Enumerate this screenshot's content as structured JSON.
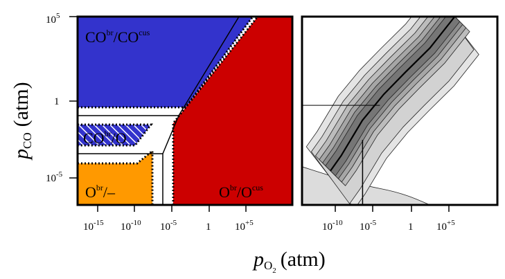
{
  "chart_data": [
    {
      "type": "phase-diagram",
      "panel": "left",
      "x_ticks": [
        {
          "base": "10",
          "exp": "-15",
          "value": -15
        },
        {
          "base": "10",
          "exp": "-10",
          "value": -10
        },
        {
          "base": "10",
          "exp": "-5",
          "value": -5
        },
        {
          "base": "1",
          "exp": "",
          "value": 0
        },
        {
          "base": "10",
          "exp": "+5",
          "value": 5
        }
      ],
      "y_ticks": [
        {
          "base": "10",
          "exp": "5",
          "value": 5
        },
        {
          "base": "1",
          "exp": "",
          "value": 0
        },
        {
          "base": "10",
          "exp": "-5",
          "value": -5
        }
      ],
      "xlim_log10": [
        -18.5,
        10.5
      ],
      "ylim_log10": [
        -8.8,
        5
      ],
      "regions": [
        {
          "id": "co-co",
          "base": "CO",
          "sup1": "br",
          "sep": "/",
          "base2": "CO",
          "sup2": "cus",
          "color": "#3333cc"
        },
        {
          "id": "co-o",
          "base": "CO",
          "sup1": "br",
          "sep": "/",
          "base2": "O",
          "sup2": "",
          "color": "#3333cc",
          "hatched": true
        },
        {
          "id": "o-empty",
          "base": "O",
          "sup1": "br",
          "sep": "/",
          "base2": "–",
          "sup2": "",
          "color": "#ff9900"
        },
        {
          "id": "o-o",
          "base": "O",
          "sup1": "br",
          "sep": "/",
          "base2": "O",
          "sup2": "cus",
          "color": "#cc0000"
        }
      ]
    },
    {
      "type": "contour",
      "panel": "right",
      "x_ticks": [
        {
          "base": "10",
          "exp": "-10",
          "value": -10
        },
        {
          "base": "10",
          "exp": "-5",
          "value": -5
        },
        {
          "base": "1",
          "exp": "",
          "value": 0
        },
        {
          "base": "10",
          "exp": "+5",
          "value": 5
        }
      ],
      "xlim_log10": [
        -15,
        12.5
      ],
      "ylim_log10": [
        -8.8,
        5
      ],
      "marked_point_log10": {
        "x": -5.5,
        "y": -1.5
      },
      "optimum_line_log10": [
        [
          -11,
          -6.3
        ],
        [
          -9.5,
          -5.2
        ],
        [
          -6.5,
          -2.6
        ],
        [
          -3.5,
          -0.7
        ],
        [
          -0.5,
          0.9
        ],
        [
          3.0,
          2.7
        ],
        [
          6.5,
          5.0
        ]
      ]
    }
  ],
  "labels": {
    "x_axis": {
      "p": "p",
      "sub": "O",
      "subsub": "2",
      "unit": "(atm)"
    },
    "y_axis": {
      "p": "p",
      "sub": "CO",
      "unit": "(atm)"
    }
  },
  "colors": {
    "co_co": "#3333cc",
    "o_o": "#cc0000",
    "o_empty": "#ff9900",
    "hatch": "#ffffff"
  }
}
